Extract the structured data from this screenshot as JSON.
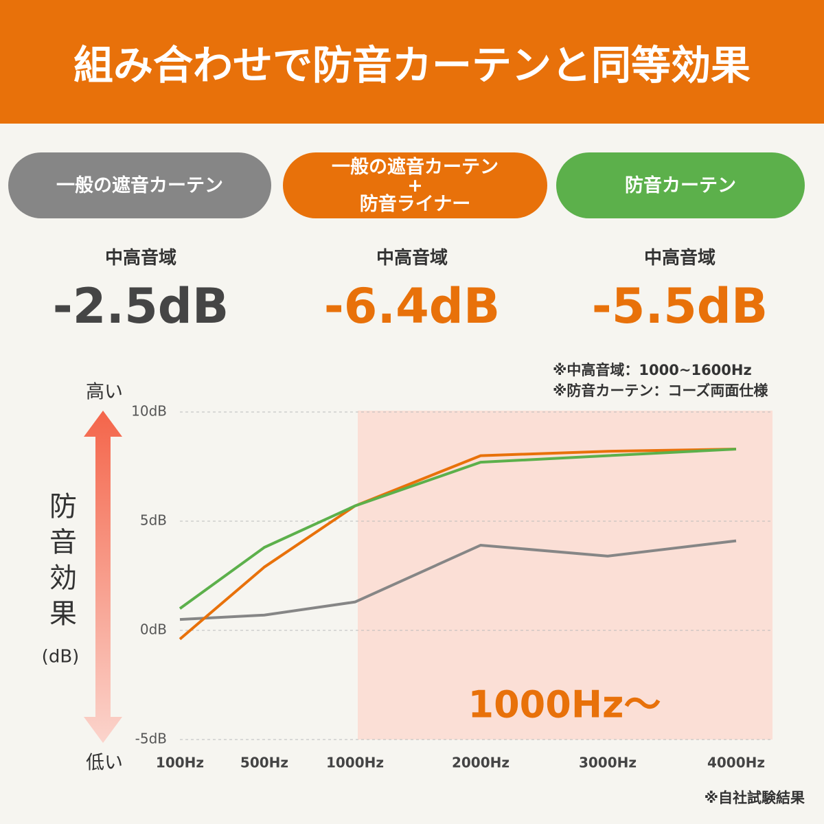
{
  "header": {
    "title": "組み合わせで防音カーテンと同等効果"
  },
  "cards": [
    {
      "label": "中高音域",
      "value": "-2.5dB",
      "value_color": "#454545"
    },
    {
      "label": "中高音域",
      "value": "-6.4dB",
      "value_color": "#e8710a"
    },
    {
      "label": "中高音域",
      "value": "-5.5dB",
      "value_color": "#e8710a"
    }
  ],
  "notes": [
    "※中高音域：1000~1600Hz",
    "※防音カーテン：コーズ両面仕様",
    "※自社試験結果"
  ],
  "chart_data": {
    "type": "line",
    "y_axis": {
      "label": "防音効果",
      "unit": "(dB)",
      "high": "高い",
      "low": "低い"
    },
    "annotation": "1000Hz〜",
    "categories": [
      "100Hz",
      "500Hz",
      "1000Hz",
      "2000Hz",
      "3000Hz",
      "4000Hz"
    ],
    "series": [
      {
        "name": "一般の遮音カーテン",
        "color": "#868686",
        "values": [
          0.5,
          0.7,
          1.3,
          3.9,
          3.4,
          4.1
        ]
      },
      {
        "name": "一般の遮音カーテン\n+\n防音ライナー",
        "color": "#e8710a",
        "values": [
          -0.4,
          2.9,
          5.7,
          8.0,
          8.2,
          8.3
        ]
      },
      {
        "name": "防音カーテン",
        "color": "#5cb04b",
        "values": [
          1.0,
          3.8,
          5.7,
          7.7,
          8.0,
          8.3
        ]
      }
    ],
    "ylim": [
      -5,
      10
    ],
    "yticks": [
      {
        "value": -5,
        "label": "-5dB"
      },
      {
        "value": 0,
        "label": "0dB"
      },
      {
        "value": 5,
        "label": "5dB"
      },
      {
        "value": 10,
        "label": "10dB"
      }
    ],
    "grid": true
  }
}
